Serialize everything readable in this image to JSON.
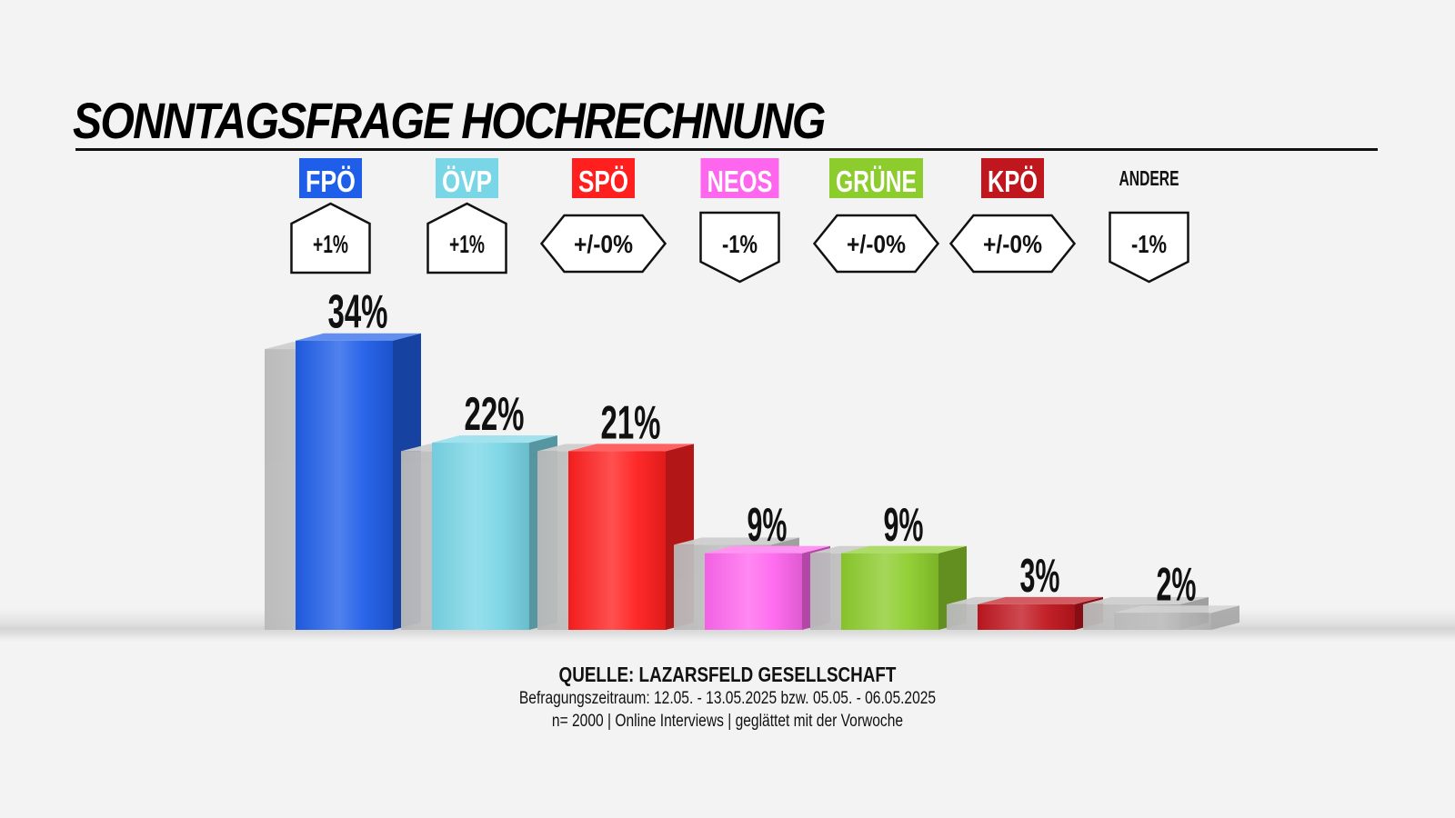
{
  "chart_data": {
    "type": "bar",
    "title": "SONNTAGSFRAGE HOCHRECHNUNG",
    "categories": [
      "FPÖ",
      "ÖVP",
      "SPÖ",
      "NEOS",
      "GRÜNE",
      "KPÖ",
      "ANDERE"
    ],
    "series": [
      {
        "values": [
          34,
          22,
          21,
          9,
          9,
          3,
          2
        ]
      },
      {
        "values": [
          33,
          21,
          21,
          10,
          9,
          3,
          3
        ]
      }
    ],
    "changes": [
      "+1%",
      "+1%",
      "+/-0%",
      "-1%",
      "+/-0%",
      "+/-0%",
      "-1%"
    ],
    "value_labels": [
      "34%",
      "22%",
      "21%",
      "9%",
      "9%",
      "3%",
      "2%"
    ],
    "ylim": [
      0,
      36
    ],
    "grid": false,
    "legend": "none"
  },
  "colors": {
    "FPÖ": "#1f5ee8",
    "ÖVP": "#79d6e6",
    "SPÖ": "#ff1f1f",
    "NEOS": "#ff66ee",
    "GRÜNE": "#8ccc2c",
    "KPÖ": "#c0161e",
    "ANDERE": "#bbbbbb",
    "previous": "#b3b3b3"
  },
  "footer": {
    "source": "QUELLE: LAZARSFELD GESELLSCHAFT",
    "period": "Befragungszeitraum: 12.05. - 13.05.2025 bzw. 05.05. - 06.05.2025",
    "sample": "n= 2000 | Online Interviews | geglättet mit der Vorwoche"
  }
}
